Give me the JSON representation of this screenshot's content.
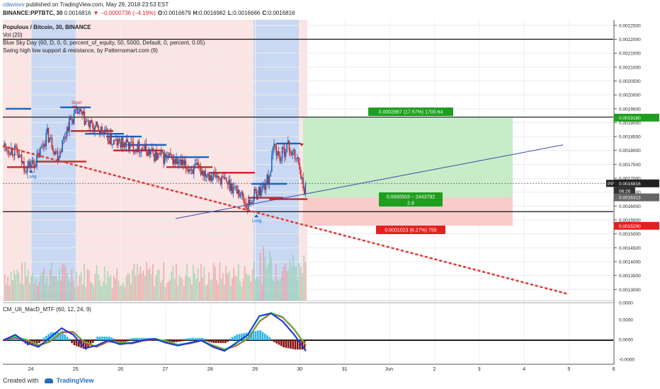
{
  "header": {
    "user": "cdavisvv",
    "published": "published on TradingView.com, May 29, 2018 23:53 EST",
    "symbol_line": "BINANCE:PPTBTC, 30",
    "last": "0.0016816",
    "change": "−0.0000736 (−4.19%)",
    "o_label": "O:",
    "o_val": "0.0016679",
    "h_label": "H:",
    "h_val": "0.0016982",
    "l_label": "L:",
    "l_val": "0.0016666",
    "c_label": "C:",
    "c_val": "0.0016816"
  },
  "legend": {
    "title": "Populous / Bitcoin, 30, BINANCE",
    "vol": "Vol (20)",
    "indicator1": "Blue Sky Day (60, D, 0, 0, percent_of_equity, 50, 5000, Default, 0, percent, 0.05)",
    "indicator2": "Swing high low support & resistance, by Patternsmart.com (9)"
  },
  "footer": {
    "created": "Created with",
    "brand": "TradingView"
  },
  "colors": {
    "bull": "#1565c0",
    "bear": "#c62828",
    "pink_zone": "#fbe4e4",
    "blue_zone": "#c9d8f3",
    "profit_box": "#c8ecc8",
    "loss_box": "#f9cccc",
    "profit_label": "#1e9e1e",
    "loss_label": "#e52020",
    "trend": "#e53935",
    "upline": "#3949ab"
  },
  "chart_data": [
    {
      "type": "candlestick",
      "title": "Populous / Bitcoin, 30, BINANCE",
      "y_ticks": [
        "0.0022500",
        "0.0022000",
        "0.0021500",
        "0.0021000",
        "0.0020500",
        "0.0020000",
        "0.0019500",
        "0.0019000",
        "0.0018500",
        "0.0018000",
        "0.0017500",
        "0.0017000",
        "0.0016500",
        "0.0016000",
        "0.0015500",
        "0.0015000",
        "0.0014500",
        "0.0014000",
        "0.0013500",
        "0.0013000"
      ],
      "x_ticks": [
        "24",
        "25",
        "26",
        "27",
        "28",
        "29",
        "30",
        "31",
        "Jun",
        "2",
        "3",
        "4",
        "5",
        "6"
      ],
      "ylim": [
        0.00126,
        0.00227
      ],
      "x_range": [
        "May 23 14:00",
        "Jun 6 12:00"
      ],
      "markers": [
        {
          "label": "Long",
          "date": "May 23 23:00"
        },
        {
          "label": "Long",
          "date": "May 28 23:00"
        },
        {
          "label": "Short",
          "date": "May 24 22:00"
        }
      ],
      "price_labels": [
        {
          "label": "0.0019180"
        },
        {
          "label": "PPTBTC",
          "value": "0.0016816",
          "sub": "06:26"
        },
        {
          "label": "0.0016313"
        },
        {
          "label": "0.0015290"
        }
      ],
      "horizontal_lines": [
        0.0022,
        0.00192,
        0.00158
      ],
      "position_tool": {
        "entry": 0.0016313,
        "target": 0.001918,
        "stop": 0.001529,
        "profit_label": "0.0002867 (17.57%) 1700.64",
        "ratio_label_1": "0.0000503 ~ 2443792",
        "ratio_label_2": "2.8",
        "loss_label": "0.0001023 (6.27%) 750"
      },
      "price_path": [
        {
          "d": 0.0,
          "v": 0.001815
        },
        {
          "d": 0.3,
          "v": 0.0018
        },
        {
          "d": 0.6,
          "v": 0.00174
        },
        {
          "d": 0.9,
          "v": 0.00176
        },
        {
          "d": 1.2,
          "v": 0.00186
        },
        {
          "d": 1.5,
          "v": 0.00178
        },
        {
          "d": 1.8,
          "v": 0.0019
        },
        {
          "d": 2.05,
          "v": 0.00194
        },
        {
          "d": 2.35,
          "v": 0.00189
        },
        {
          "d": 2.7,
          "v": 0.00187
        },
        {
          "d": 3.0,
          "v": 0.00183
        },
        {
          "d": 3.4,
          "v": 0.00182
        },
        {
          "d": 3.8,
          "v": 0.00181
        },
        {
          "d": 4.2,
          "v": 0.00178
        },
        {
          "d": 4.6,
          "v": 0.00177
        },
        {
          "d": 5.0,
          "v": 0.00174
        },
        {
          "d": 5.4,
          "v": 0.00173
        },
        {
          "d": 5.8,
          "v": 0.00171
        },
        {
          "d": 6.2,
          "v": 0.00168
        },
        {
          "d": 6.5,
          "v": 0.00165
        },
        {
          "d": 6.7,
          "v": 0.0016
        },
        {
          "d": 6.9,
          "v": 0.00164
        },
        {
          "d": 7.1,
          "v": 0.00166
        },
        {
          "d": 7.3,
          "v": 0.0017
        },
        {
          "d": 7.45,
          "v": 0.00182
        },
        {
          "d": 7.6,
          "v": 0.00177
        },
        {
          "d": 7.8,
          "v": 0.00182
        },
        {
          "d": 8.0,
          "v": 0.00178
        },
        {
          "d": 8.15,
          "v": 0.00175
        },
        {
          "d": 8.25,
          "v": 0.00165
        },
        {
          "d": 8.32,
          "v": 0.001682
        }
      ]
    },
    {
      "type": "line",
      "title": "CM_Ult_MacD_MTF (60, 12, 24, 9)",
      "y_ticks": [
        "0.0000",
        "0.0000",
        "0.0000",
        "-0.0000"
      ],
      "series": [
        {
          "values": [
            0,
            0.2,
            -0.1,
            -0.25,
            0.1,
            0.45,
            0.2,
            -0.3,
            -0.2,
            0.0,
            -0.15,
            -0.1,
            0.0,
            0.05,
            -0.1,
            -0.2,
            -0.1,
            0.0,
            -0.25,
            -0.4,
            -0.1,
            0.2,
            0.9,
            1.0,
            0.7,
            0.2,
            -0.4
          ]
        },
        {
          "values": [
            0,
            0.1,
            0.0,
            -0.2,
            -0.05,
            0.3,
            0.3,
            -0.1,
            -0.25,
            -0.05,
            -0.1,
            -0.12,
            -0.02,
            0.03,
            -0.05,
            -0.18,
            -0.12,
            -0.02,
            -0.2,
            -0.35,
            -0.2,
            0.05,
            0.7,
            1.0,
            0.85,
            0.4,
            -0.2
          ]
        }
      ]
    }
  ]
}
